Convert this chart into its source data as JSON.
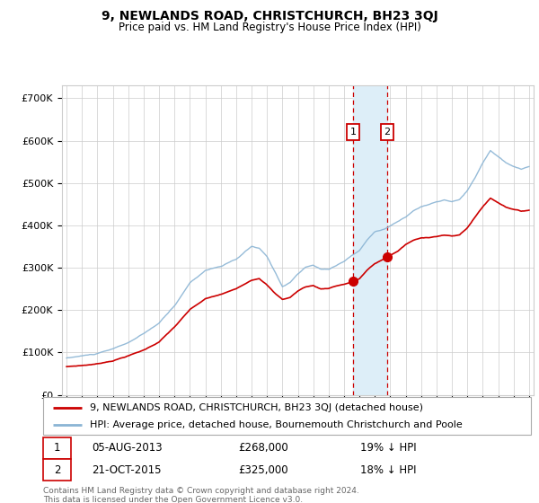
{
  "title": "9, NEWLANDS ROAD, CHRISTCHURCH, BH23 3QJ",
  "subtitle": "Price paid vs. HM Land Registry's House Price Index (HPI)",
  "hpi_color": "#8ab4d4",
  "price_color": "#cc0000",
  "highlight_color": "#ddeef8",
  "ylim": [
    0,
    730000
  ],
  "yticks": [
    0,
    100000,
    200000,
    300000,
    400000,
    500000,
    600000,
    700000
  ],
  "ytick_labels": [
    "£0",
    "£100K",
    "£200K",
    "£300K",
    "£400K",
    "£500K",
    "£600K",
    "£700K"
  ],
  "t1_year": 2013.58,
  "t2_year": 2015.8,
  "t1_price": 268000,
  "t2_price": 325000,
  "transaction1": {
    "date": "05-AUG-2013",
    "price": 268000,
    "pct": "19%"
  },
  "transaction2": {
    "date": "21-OCT-2015",
    "price": 325000,
    "pct": "18%"
  },
  "legend_line1": "9, NEWLANDS ROAD, CHRISTCHURCH, BH23 3QJ (detached house)",
  "legend_line2": "HPI: Average price, detached house, Bournemouth Christchurch and Poole",
  "footer": "Contains HM Land Registry data © Crown copyright and database right 2024.\nThis data is licensed under the Open Government Licence v3.0."
}
